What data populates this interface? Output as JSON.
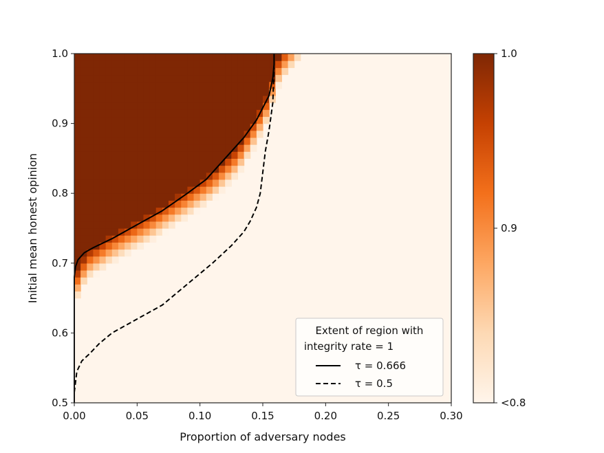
{
  "chart_data": {
    "type": "heatmap",
    "title": "",
    "xlabel": "Proportion of adversary nodes",
    "ylabel": "Initial mean honest opinion",
    "xlim": [
      0.0,
      0.3
    ],
    "ylim": [
      0.5,
      1.0
    ],
    "x_ticks": [
      "0.00",
      "0.05",
      "0.10",
      "0.15",
      "0.20",
      "0.25",
      "0.30"
    ],
    "y_ticks": [
      "0.5",
      "0.6",
      "0.7",
      "0.8",
      "0.9",
      "1.0"
    ],
    "colorbar": {
      "ticks": [
        "1.0",
        "0.9",
        "<0.8"
      ],
      "range": [
        0.8,
        1.0
      ],
      "colormap": "Oranges",
      "low_color": "#fff5eb",
      "high_color": "#7f2704"
    },
    "heatmap": {
      "cell_size_x": 0.005,
      "cell_size_y": 0.01,
      "description_boundary": "integrity rate = 1 above solid curve; narrow orange transition band (0.8–1.0) just below it, clipped to <0.8 elsewhere",
      "boundary_points": [
        [
          0.0,
          0.68
        ],
        [
          0.01,
          0.715
        ],
        [
          0.03,
          0.74
        ],
        [
          0.06,
          0.77
        ],
        [
          0.09,
          0.805
        ],
        [
          0.11,
          0.83
        ],
        [
          0.13,
          0.865
        ],
        [
          0.145,
          0.91
        ],
        [
          0.155,
          0.945
        ],
        [
          0.16,
          0.985
        ],
        [
          0.165,
          1.0
        ]
      ]
    },
    "series": [
      {
        "name": "τ = 0.666",
        "style": "solid",
        "x": [
          0.0,
          0.0,
          0.001,
          0.003,
          0.008,
          0.015,
          0.03,
          0.05,
          0.07,
          0.09,
          0.105,
          0.12,
          0.135,
          0.145,
          0.155,
          0.158,
          0.159,
          0.159
        ],
        "y": [
          0.5,
          0.68,
          0.695,
          0.705,
          0.715,
          0.722,
          0.735,
          0.755,
          0.775,
          0.8,
          0.82,
          0.85,
          0.88,
          0.905,
          0.94,
          0.965,
          0.985,
          1.0
        ]
      },
      {
        "name": "τ = 0.5",
        "style": "dashed",
        "x": [
          0.0,
          0.002,
          0.006,
          0.012,
          0.02,
          0.03,
          0.05,
          0.07,
          0.09,
          0.11,
          0.125,
          0.135,
          0.14,
          0.145,
          0.148,
          0.15,
          0.152,
          0.155,
          0.158,
          0.159
        ],
        "y": [
          0.515,
          0.545,
          0.56,
          0.57,
          0.585,
          0.6,
          0.62,
          0.64,
          0.67,
          0.7,
          0.725,
          0.745,
          0.76,
          0.78,
          0.8,
          0.83,
          0.86,
          0.89,
          0.93,
          0.98
        ]
      }
    ],
    "legend": {
      "title_line1": "Extent of region with",
      "title_line2": "integrity rate = 1",
      "placement": "lower-right"
    }
  }
}
